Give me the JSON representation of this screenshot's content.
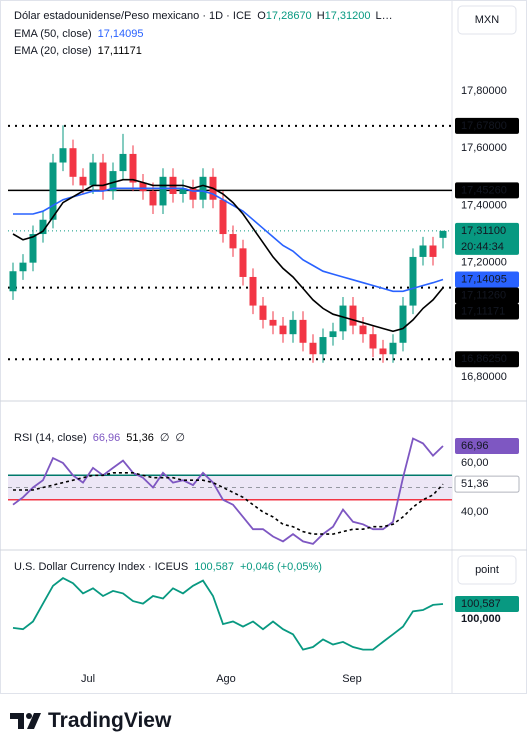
{
  "chart_data": [
    {
      "type": "candlestick",
      "title": "Dólar estadounidense/Peso mexicano · 1D · ICE",
      "header_values": [
        {
          "key": "O",
          "value": 17.2867,
          "label": "17,28670"
        },
        {
          "key": "H",
          "value": 17.312,
          "label": "17,31200"
        }
      ],
      "header_more": "L…",
      "currency": "MXN",
      "color_up": "#089981",
      "color_down": "#f23645",
      "open": [
        17.1,
        17.17,
        17.2,
        17.3,
        17.35,
        17.55,
        17.6,
        17.5,
        17.47,
        17.55,
        17.45,
        17.52,
        17.58,
        17.48,
        17.45,
        17.4,
        17.5,
        17.44,
        17.46,
        17.42,
        17.5,
        17.42,
        17.3,
        17.25,
        17.15,
        17.05,
        17.0,
        16.98,
        16.95,
        17.0,
        16.92,
        16.88,
        16.94,
        16.96,
        17.05,
        16.98,
        16.95,
        16.9,
        16.88,
        16.92,
        17.05,
        17.22,
        17.26,
        17.2867
      ],
      "high": [
        17.2,
        17.23,
        17.33,
        17.38,
        17.58,
        17.68,
        17.63,
        17.53,
        17.58,
        17.58,
        17.55,
        17.65,
        17.61,
        17.51,
        17.48,
        17.53,
        17.53,
        17.49,
        17.49,
        17.53,
        17.53,
        17.45,
        17.33,
        17.28,
        17.18,
        17.08,
        17.03,
        17.01,
        17.03,
        17.03,
        16.95,
        16.97,
        16.99,
        17.08,
        17.08,
        17.01,
        16.98,
        16.93,
        16.95,
        17.08,
        17.25,
        17.29,
        17.29,
        17.312
      ],
      "low": [
        17.07,
        17.14,
        17.17,
        17.27,
        17.32,
        17.52,
        17.47,
        17.44,
        17.44,
        17.42,
        17.42,
        17.49,
        17.45,
        17.42,
        17.37,
        17.37,
        17.41,
        17.41,
        17.39,
        17.39,
        17.39,
        17.27,
        17.22,
        17.12,
        17.02,
        16.97,
        16.95,
        16.92,
        16.92,
        16.89,
        16.85,
        16.85,
        16.91,
        16.93,
        16.95,
        16.92,
        16.87,
        16.85,
        16.85,
        16.89,
        17.02,
        17.19,
        17.19,
        17.25
      ],
      "close": [
        17.17,
        17.2,
        17.3,
        17.35,
        17.55,
        17.6,
        17.5,
        17.47,
        17.55,
        17.45,
        17.52,
        17.58,
        17.48,
        17.45,
        17.4,
        17.5,
        17.44,
        17.46,
        17.42,
        17.5,
        17.42,
        17.3,
        17.25,
        17.15,
        17.05,
        17.0,
        16.98,
        16.95,
        17.0,
        16.92,
        16.88,
        16.94,
        16.96,
        17.05,
        16.98,
        16.95,
        16.9,
        16.88,
        16.92,
        17.05,
        17.22,
        17.26,
        17.22,
        17.311
      ],
      "last_price": {
        "value": 17.311,
        "label": "17,31100",
        "countdown": "20:44:34",
        "color": "#089981"
      },
      "series": [
        {
          "name": "EMA (50, close)",
          "color": "#2962ff",
          "last_label": "17,14095",
          "values": [
            17.37,
            17.37,
            17.37,
            17.38,
            17.4,
            17.42,
            17.43,
            17.44,
            17.45,
            17.45,
            17.46,
            17.46,
            17.46,
            17.46,
            17.46,
            17.46,
            17.46,
            17.46,
            17.45,
            17.45,
            17.44,
            17.42,
            17.4,
            17.38,
            17.35,
            17.32,
            17.29,
            17.26,
            17.24,
            17.21,
            17.19,
            17.17,
            17.16,
            17.15,
            17.14,
            17.13,
            17.12,
            17.11,
            17.1,
            17.1,
            17.11,
            17.12,
            17.13,
            17.141
          ]
        },
        {
          "name": "EMA (20, close)",
          "color": "#000000",
          "last_label": "17,11171",
          "values": [
            17.3,
            17.28,
            17.29,
            17.31,
            17.36,
            17.41,
            17.43,
            17.45,
            17.47,
            17.47,
            17.48,
            17.49,
            17.49,
            17.48,
            17.47,
            17.47,
            17.47,
            17.47,
            17.46,
            17.47,
            17.46,
            17.44,
            17.41,
            17.37,
            17.32,
            17.27,
            17.22,
            17.18,
            17.15,
            17.11,
            17.07,
            17.04,
            17.02,
            17.01,
            17.0,
            16.99,
            16.98,
            16.97,
            16.96,
            16.97,
            17.0,
            17.04,
            17.07,
            17.112
          ]
        }
      ],
      "hlines": [
        {
          "value": 17.678,
          "label": "17,67800",
          "style": "dotted"
        },
        {
          "value": 17.4526,
          "label": "17,45260",
          "style": "solid"
        },
        {
          "value": 17.1126,
          "label": "17,11260",
          "style": "dotted"
        },
        {
          "value": 16.8625,
          "label": "16,86250",
          "style": "dotted"
        }
      ],
      "ylim": [
        16.72,
        18.09
      ],
      "yticks": [
        {
          "value": 17.8,
          "label": "17,80000"
        },
        {
          "value": 17.6,
          "label": "17,60000"
        },
        {
          "value": 17.4,
          "label": "17,40000"
        },
        {
          "value": 17.2,
          "label": "17,20000"
        },
        {
          "value": 16.8,
          "label": "16,80000"
        }
      ],
      "xlim": [
        -0.5,
        43.9
      ],
      "xticks": [
        {
          "value": 7.5,
          "label": "Jul"
        },
        {
          "value": 21.3,
          "label": "Ago"
        },
        {
          "value": 33.9,
          "label": "Sep"
        }
      ],
      "grid": false
    },
    {
      "type": "line",
      "title": "RSI (14, close)",
      "legend_extra": [
        "∅",
        "∅"
      ],
      "series": [
        {
          "color": "#7e57c2",
          "last_label": "66,96",
          "values": [
            43,
            46,
            50,
            53,
            62,
            60,
            55,
            52,
            58,
            55,
            58,
            61,
            56,
            54,
            50,
            56,
            52,
            53,
            51,
            56,
            52,
            45,
            43,
            38,
            33,
            33,
            30,
            28,
            31,
            28,
            27,
            31,
            34,
            41,
            36,
            35,
            33,
            33,
            36,
            54,
            70,
            68,
            63,
            66.96
          ]
        },
        {
          "color": "#000000",
          "style": "dotted",
          "last_label": "51,36",
          "values": [
            49,
            49,
            49,
            50,
            51,
            52,
            53,
            54,
            55,
            55,
            56,
            56,
            56,
            55,
            54,
            54,
            54,
            53,
            53,
            53,
            52,
            50,
            48,
            46,
            43,
            40,
            38,
            35,
            34,
            32,
            31,
            31,
            31,
            32,
            33,
            33,
            34,
            34,
            35,
            38,
            42,
            45,
            47,
            51.36
          ]
        }
      ],
      "bands": [
        {
          "value": 55,
          "color": "#00796b"
        },
        {
          "value": 45,
          "color": "#f23645"
        }
      ],
      "band_fill": "#ede7f6",
      "midline": 50,
      "ylim": [
        24.5,
        84.9
      ],
      "yticks": [
        {
          "value": 60,
          "label": "60,00"
        },
        {
          "value": 40,
          "label": "40,00"
        }
      ]
    },
    {
      "type": "line",
      "title": "U.S. Dollar Currency Index · ICEUS",
      "change_label": "+0,046 (+0,05%)",
      "button": "point",
      "series": [
        {
          "color": "#089981",
          "last_label": "100,587",
          "values": [
            99.65,
            99.6,
            99.9,
            100.6,
            101.3,
            101.6,
            101.4,
            101.0,
            101.2,
            100.9,
            101.1,
            101.0,
            100.7,
            100.6,
            100.9,
            100.8,
            101.2,
            101.0,
            101.3,
            101.5,
            100.9,
            99.8,
            99.9,
            99.7,
            99.9,
            99.6,
            99.9,
            99.6,
            99.4,
            98.8,
            98.9,
            99.2,
            99.0,
            99.1,
            98.9,
            98.8,
            98.8,
            99.1,
            99.4,
            99.7,
            100.3,
            100.35,
            100.55,
            100.587
          ]
        }
      ],
      "ylim": [
        97.1,
        102.7
      ],
      "yticks": [
        {
          "value": 100,
          "label": "100,000"
        }
      ]
    }
  ],
  "brand": "TradingView"
}
